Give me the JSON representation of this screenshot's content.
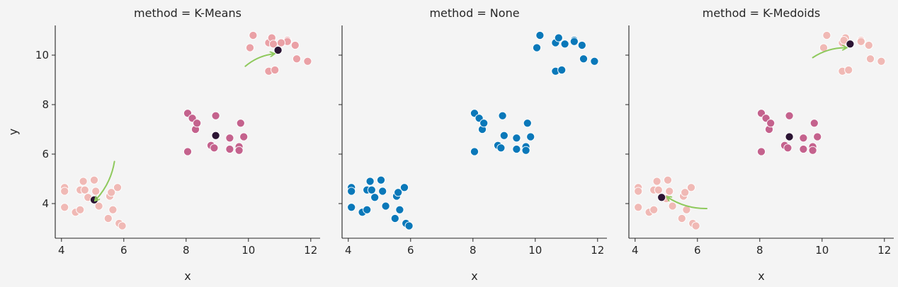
{
  "colors": {
    "background": "#f4f4f4",
    "cluster_low": "#f0b9b5",
    "cluster_mid": "#c4628d",
    "cluster_high": "#eaa1a6",
    "centroid": "#2b1433",
    "none_blue": "#0a78b9",
    "arrow_green": "#8ec95c"
  },
  "chart_data": [
    {
      "type": "scatter",
      "title": "method = K-Means",
      "xlabel": "x",
      "ylabel": "y",
      "xlim": [
        3.8,
        12.3
      ],
      "ylim": [
        2.6,
        11.2
      ],
      "xticks": [
        4,
        6,
        8,
        10,
        12
      ],
      "yticks": [
        4,
        6,
        8,
        10
      ],
      "grid": false,
      "legend": "none",
      "series": [
        {
          "color_key": "cluster_low",
          "points": [
            [
              4.1,
              4.65
            ],
            [
              4.1,
              4.5
            ],
            [
              4.1,
              3.85
            ],
            [
              4.45,
              3.65
            ],
            [
              4.6,
              3.75
            ],
            [
              4.6,
              4.55
            ],
            [
              4.7,
              4.9
            ],
            [
              4.75,
              4.55
            ],
            [
              4.85,
              4.25
            ],
            [
              5.05,
              4.95
            ],
            [
              5.1,
              4.5
            ],
            [
              5.2,
              3.9
            ],
            [
              5.5,
              3.4
            ],
            [
              5.55,
              4.3
            ],
            [
              5.6,
              4.45
            ],
            [
              5.65,
              3.75
            ],
            [
              5.8,
              4.65
            ],
            [
              5.85,
              3.2
            ],
            [
              5.95,
              3.1
            ]
          ]
        },
        {
          "color_key": "cluster_mid",
          "points": [
            [
              8.05,
              7.65
            ],
            [
              8.05,
              6.1
            ],
            [
              8.2,
              7.45
            ],
            [
              8.3,
              7.0
            ],
            [
              8.35,
              7.25
            ],
            [
              8.8,
              6.35
            ],
            [
              8.9,
              6.25
            ],
            [
              8.95,
              7.55
            ],
            [
              9.4,
              6.65
            ],
            [
              9.4,
              6.2
            ],
            [
              9.7,
              6.3
            ],
            [
              9.7,
              6.15
            ],
            [
              9.75,
              7.25
            ],
            [
              9.85,
              6.7
            ]
          ]
        },
        {
          "color_key": "cluster_high",
          "points": [
            [
              10.05,
              10.3
            ],
            [
              10.15,
              10.8
            ],
            [
              10.65,
              10.5
            ],
            [
              10.65,
              9.35
            ],
            [
              10.75,
              10.7
            ],
            [
              10.85,
              9.4
            ],
            [
              11.25,
              10.6
            ],
            [
              11.25,
              10.55
            ],
            [
              11.5,
              10.4
            ],
            [
              11.55,
              9.85
            ],
            [
              11.9,
              9.75
            ],
            [
              10.8,
              10.45
            ],
            [
              11.05,
              10.5
            ]
          ]
        },
        {
          "color_key": "centroid",
          "points": [
            [
              5.05,
              4.15
            ],
            [
              8.95,
              6.75
            ],
            [
              10.95,
              10.2
            ]
          ]
        }
      ],
      "annotations": [
        {
          "type": "arrow",
          "color_key": "arrow_green",
          "from": [
            5.7,
            5.7
          ],
          "to": [
            5.1,
            4.15
          ]
        },
        {
          "type": "arrow",
          "color_key": "arrow_green",
          "from": [
            9.9,
            9.55
          ],
          "to": [
            10.8,
            10.05
          ]
        }
      ]
    },
    {
      "type": "scatter",
      "title": "method = None",
      "xlabel": "x",
      "ylabel": "",
      "xlim": [
        3.8,
        12.3
      ],
      "ylim": [
        2.6,
        11.2
      ],
      "xticks": [
        4,
        6,
        8,
        10,
        12
      ],
      "yticks": [
        4,
        6,
        8,
        10
      ],
      "grid": false,
      "legend": "none",
      "series": [
        {
          "color_key": "none_blue",
          "points": [
            [
              4.1,
              4.65
            ],
            [
              4.1,
              4.5
            ],
            [
              4.1,
              3.85
            ],
            [
              4.45,
              3.65
            ],
            [
              4.6,
              3.75
            ],
            [
              4.6,
              4.55
            ],
            [
              4.7,
              4.9
            ],
            [
              4.75,
              4.55
            ],
            [
              4.85,
              4.25
            ],
            [
              5.05,
              4.95
            ],
            [
              5.1,
              4.5
            ],
            [
              5.2,
              3.9
            ],
            [
              5.5,
              3.4
            ],
            [
              5.55,
              4.3
            ],
            [
              5.6,
              4.45
            ],
            [
              5.65,
              3.75
            ],
            [
              5.8,
              4.65
            ],
            [
              5.85,
              3.2
            ],
            [
              5.95,
              3.1
            ],
            [
              8.05,
              7.65
            ],
            [
              8.05,
              6.1
            ],
            [
              8.2,
              7.45
            ],
            [
              8.3,
              7.0
            ],
            [
              8.35,
              7.25
            ],
            [
              8.8,
              6.35
            ],
            [
              8.9,
              6.25
            ],
            [
              8.95,
              7.55
            ],
            [
              9.0,
              6.75
            ],
            [
              9.4,
              6.65
            ],
            [
              9.4,
              6.2
            ],
            [
              9.7,
              6.3
            ],
            [
              9.7,
              6.15
            ],
            [
              9.75,
              7.25
            ],
            [
              9.85,
              6.7
            ],
            [
              10.05,
              10.3
            ],
            [
              10.15,
              10.8
            ],
            [
              10.65,
              10.5
            ],
            [
              10.65,
              9.35
            ],
            [
              10.75,
              10.7
            ],
            [
              10.85,
              9.4
            ],
            [
              10.95,
              10.45
            ],
            [
              11.25,
              10.6
            ],
            [
              11.25,
              10.55
            ],
            [
              11.5,
              10.4
            ],
            [
              11.55,
              9.85
            ],
            [
              11.9,
              9.75
            ]
          ]
        }
      ],
      "annotations": []
    },
    {
      "type": "scatter",
      "title": "method = K-Medoids",
      "xlabel": "x",
      "ylabel": "",
      "xlim": [
        3.8,
        12.3
      ],
      "ylim": [
        2.6,
        11.2
      ],
      "xticks": [
        4,
        6,
        8,
        10,
        12
      ],
      "yticks": [
        4,
        6,
        8,
        10
      ],
      "grid": false,
      "legend": "none",
      "series": [
        {
          "color_key": "cluster_low",
          "points": [
            [
              4.1,
              4.65
            ],
            [
              4.1,
              4.5
            ],
            [
              4.1,
              3.85
            ],
            [
              4.45,
              3.65
            ],
            [
              4.6,
              3.75
            ],
            [
              4.6,
              4.55
            ],
            [
              4.7,
              4.9
            ],
            [
              4.75,
              4.55
            ],
            [
              5.05,
              4.95
            ],
            [
              5.1,
              4.5
            ],
            [
              5.2,
              3.9
            ],
            [
              5.5,
              3.4
            ],
            [
              5.55,
              4.3
            ],
            [
              5.6,
              4.45
            ],
            [
              5.65,
              3.75
            ],
            [
              5.8,
              4.65
            ],
            [
              5.85,
              3.2
            ],
            [
              5.95,
              3.1
            ],
            [
              5.0,
              4.2
            ]
          ]
        },
        {
          "color_key": "cluster_mid",
          "points": [
            [
              8.05,
              7.65
            ],
            [
              8.05,
              6.1
            ],
            [
              8.2,
              7.45
            ],
            [
              8.3,
              7.0
            ],
            [
              8.35,
              7.25
            ],
            [
              8.8,
              6.35
            ],
            [
              8.9,
              6.25
            ],
            [
              8.95,
              7.55
            ],
            [
              9.4,
              6.65
            ],
            [
              9.4,
              6.2
            ],
            [
              9.7,
              6.3
            ],
            [
              9.7,
              6.15
            ],
            [
              9.75,
              7.25
            ],
            [
              9.85,
              6.7
            ]
          ]
        },
        {
          "color_key": "cluster_low",
          "points": [
            [
              10.05,
              10.3
            ],
            [
              10.15,
              10.8
            ],
            [
              10.65,
              10.5
            ],
            [
              10.65,
              9.35
            ],
            [
              10.75,
              10.7
            ],
            [
              10.85,
              9.4
            ],
            [
              11.25,
              10.6
            ],
            [
              11.25,
              10.55
            ],
            [
              11.5,
              10.4
            ],
            [
              11.55,
              9.85
            ],
            [
              11.9,
              9.75
            ],
            [
              10.7,
              10.6
            ]
          ]
        },
        {
          "color_key": "centroid",
          "points": [
            [
              4.85,
              4.25
            ],
            [
              8.95,
              6.7
            ],
            [
              10.9,
              10.45
            ]
          ]
        }
      ],
      "annotations": [
        {
          "type": "arrow",
          "color_key": "arrow_green",
          "from": [
            6.3,
            3.8
          ],
          "to": [
            5.05,
            4.25
          ]
        },
        {
          "type": "arrow",
          "color_key": "arrow_green",
          "from": [
            9.7,
            9.9
          ],
          "to": [
            10.75,
            10.3
          ]
        }
      ]
    }
  ]
}
